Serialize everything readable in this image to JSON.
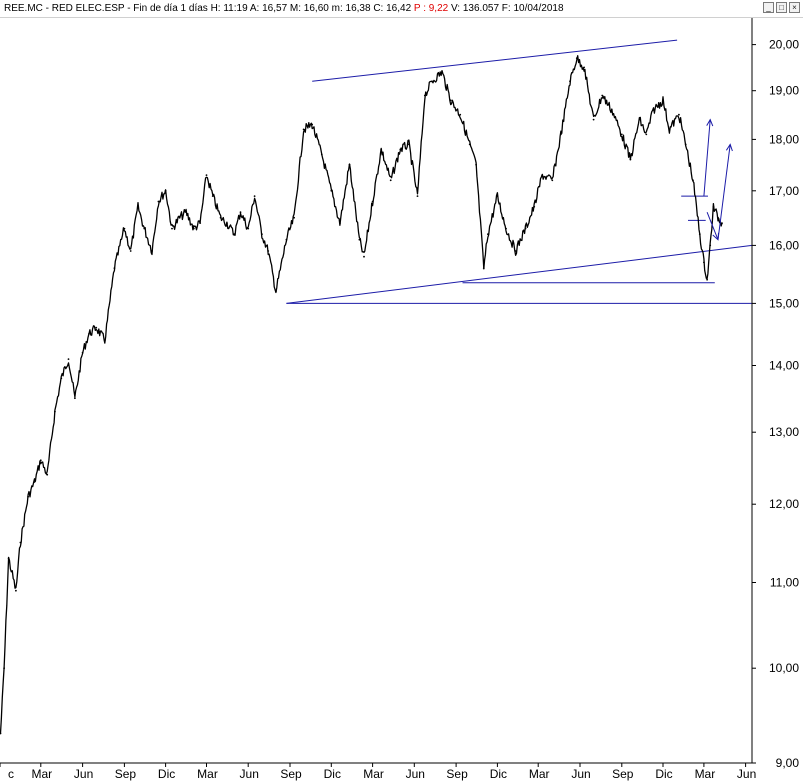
{
  "header": {
    "symbol": "REE.MC - RED ELEC.ESP",
    "period": "Fin de día 1 días",
    "h": "H: 11:19",
    "a": "A: 16,57",
    "m": "M: 16,60",
    "min": "m: 16,38",
    "c": "C: 16,42",
    "p": "P : 9,22",
    "v": "V: 136.057",
    "f": "F: 10/04/2018"
  },
  "window_controls": {
    "minimize": "_",
    "maximize": "□",
    "close": "×"
  },
  "colors": {
    "price": "#000000",
    "trend": "#1c1ca8",
    "background": "#ffffff",
    "axis": "#000000",
    "p_value": "#e00000"
  },
  "chart_data": {
    "type": "line",
    "scale": "log",
    "ylim": [
      9.0,
      20.6
    ],
    "xlim": [
      "2013-12-01",
      "2018-06-15"
    ],
    "y_ticks": [
      "9,00",
      "10,00",
      "11,00",
      "12,00",
      "13,00",
      "14,00",
      "15,00",
      "16,00",
      "17,00",
      "18,00",
      "19,00",
      "20,00"
    ],
    "y_values": [
      9,
      10,
      11,
      12,
      13,
      14,
      15,
      16,
      17,
      18,
      19,
      20
    ],
    "x_tick_labels": [
      "c",
      "Mar",
      "Jun",
      "Sep",
      "Dic",
      "Mar",
      "Jun",
      "Sep",
      "Dic",
      "Mar",
      "Jun",
      "Sep",
      "Dic",
      "Mar",
      "Jun",
      "Sep",
      "Dic",
      "Mar",
      "Jun"
    ],
    "x_tick_dates": [
      "2013-12-01",
      "2014-03-01",
      "2014-06-01",
      "2014-09-01",
      "2014-12-01",
      "2015-03-01",
      "2015-06-01",
      "2015-09-01",
      "2015-12-01",
      "2016-03-01",
      "2016-06-01",
      "2016-09-01",
      "2016-12-01",
      "2017-03-01",
      "2017-06-01",
      "2017-09-01",
      "2017-12-01",
      "2018-03-01",
      "2018-06-01"
    ],
    "series": [
      {
        "x": [
          "2013-12-02",
          "2013-12-10",
          "2013-12-20",
          "2014-01-05",
          "2014-01-15",
          "2014-02-01",
          "2014-02-15",
          "2014-03-01",
          "2014-03-15",
          "2014-04-01",
          "2014-04-15",
          "2014-05-01",
          "2014-05-15",
          "2014-06-01",
          "2014-06-15",
          "2014-07-01",
          "2014-07-20",
          "2014-08-10",
          "2014-09-01",
          "2014-09-15",
          "2014-10-01",
          "2014-10-15",
          "2014-11-01",
          "2014-11-15",
          "2014-12-01",
          "2014-12-15",
          "2015-01-01",
          "2015-01-15",
          "2015-02-01",
          "2015-02-15",
          "2015-03-01",
          "2015-03-15",
          "2015-04-01",
          "2015-04-15",
          "2015-05-01",
          "2015-05-15",
          "2015-06-01",
          "2015-06-15",
          "2015-07-01",
          "2015-07-15",
          "2015-08-01",
          "2015-08-24",
          "2015-09-10",
          "2015-10-01",
          "2015-10-20",
          "2015-11-10",
          "2015-12-01",
          "2015-12-20",
          "2016-01-10",
          "2016-02-01",
          "2016-02-11",
          "2016-03-01",
          "2016-03-20",
          "2016-04-10",
          "2016-05-01",
          "2016-05-20",
          "2016-06-08",
          "2016-06-24",
          "2016-07-10",
          "2016-08-01",
          "2016-08-20",
          "2016-09-10",
          "2016-10-01",
          "2016-10-15",
          "2016-11-01",
          "2016-11-10",
          "2016-12-01",
          "2016-12-20",
          "2017-01-10",
          "2017-02-01",
          "2017-02-20",
          "2017-03-10",
          "2017-04-01",
          "2017-04-20",
          "2017-05-10",
          "2017-05-25",
          "2017-06-10",
          "2017-07-01",
          "2017-07-20",
          "2017-08-10",
          "2017-09-01",
          "2017-09-20",
          "2017-10-10",
          "2017-10-25",
          "2017-11-10",
          "2017-12-01",
          "2017-12-15",
          "2018-01-05",
          "2018-01-20",
          "2018-02-05",
          "2018-02-20",
          "2018-03-01",
          "2018-03-08",
          "2018-03-15",
          "2018-03-22",
          "2018-04-01",
          "2018-04-10"
        ],
        "y": [
          9.3,
          10.0,
          11.3,
          10.9,
          11.5,
          12.1,
          12.3,
          12.6,
          12.4,
          13.3,
          13.8,
          14.1,
          13.5,
          14.2,
          14.5,
          14.6,
          14.4,
          15.6,
          16.3,
          15.9,
          16.7,
          16.3,
          15.9,
          16.8,
          17.0,
          16.3,
          16.5,
          16.6,
          16.3,
          16.4,
          17.3,
          16.9,
          16.5,
          16.4,
          16.2,
          16.6,
          16.3,
          16.9,
          16.2,
          15.9,
          15.2,
          16.1,
          16.5,
          18.2,
          18.3,
          17.7,
          17.0,
          16.4,
          17.5,
          16.1,
          15.8,
          16.8,
          17.8,
          17.2,
          17.8,
          17.9,
          16.9,
          18.9,
          19.2,
          19.4,
          18.8,
          18.5,
          17.9,
          17.5,
          15.6,
          16.2,
          16.9,
          16.3,
          15.9,
          16.3,
          16.7,
          17.3,
          17.2,
          18.1,
          19.2,
          19.7,
          19.5,
          18.4,
          18.9,
          18.6,
          18.1,
          17.6,
          18.4,
          18.1,
          18.6,
          18.8,
          18.2,
          18.5,
          17.9,
          17.2,
          16.2,
          15.7,
          15.4,
          16.0,
          16.7,
          16.5,
          16.4
        ]
      }
    ],
    "trendlines": [
      {
        "x": [
          "2015-08-24",
          "2018-06-15"
        ],
        "y": [
          15.0,
          15.0
        ]
      },
      {
        "x": [
          "2015-08-24",
          "2018-06-15"
        ],
        "y": [
          15.0,
          16.0
        ]
      },
      {
        "x": [
          "2015-10-20",
          "2018-01-01"
        ],
        "y": [
          19.2,
          20.1
        ]
      },
      {
        "x": [
          "2016-09-15",
          "2018-03-25"
        ],
        "y": [
          15.35,
          15.35
        ]
      },
      {
        "x": [
          "2018-01-10",
          "2018-03-10"
        ],
        "y": [
          16.9,
          16.9
        ]
      },
      {
        "x": [
          "2018-01-25",
          "2018-03-05"
        ],
        "y": [
          16.45,
          16.45
        ]
      }
    ],
    "arrows": [
      {
        "x": [
          "2018-03-01",
          "2018-03-15"
        ],
        "y": [
          16.9,
          18.4
        ]
      },
      {
        "x": [
          "2018-03-08",
          "2018-04-01"
        ],
        "y": [
          16.6,
          16.1
        ]
      },
      {
        "x": [
          "2018-04-01",
          "2018-04-28"
        ],
        "y": [
          16.1,
          17.9
        ]
      }
    ]
  }
}
